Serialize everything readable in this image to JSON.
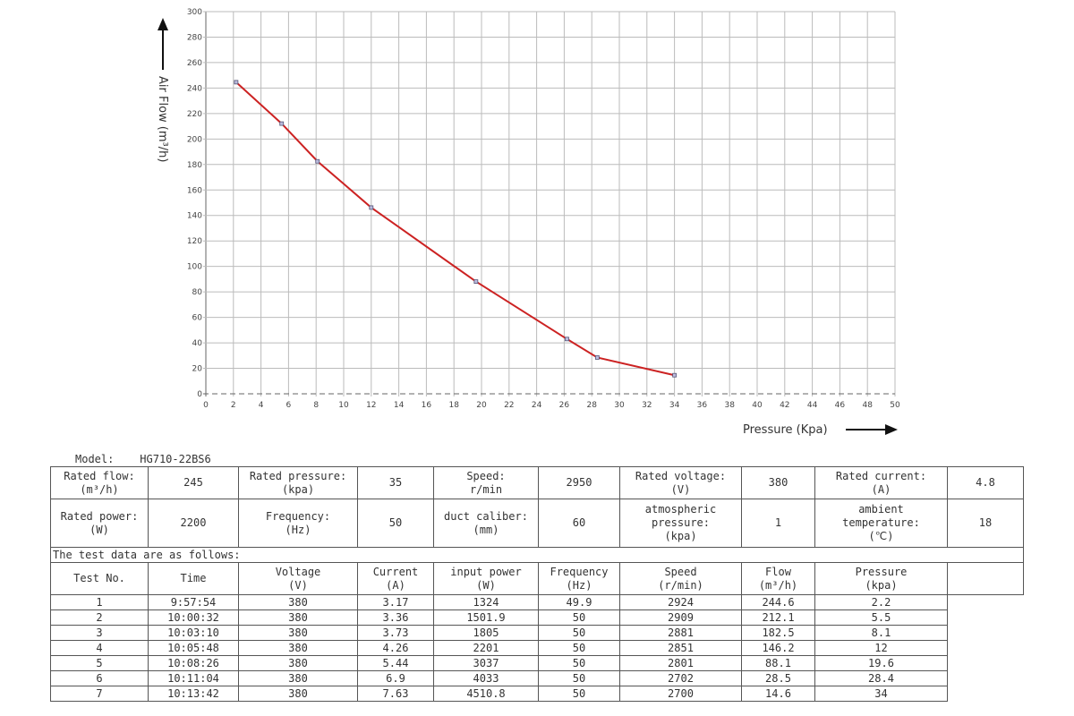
{
  "chart_data": {
    "type": "line",
    "xlabel": "Pressure (Kpa)",
    "ylabel": "Air Flow (m³/h)",
    "xlim": [
      0,
      50
    ],
    "ylim": [
      0,
      300
    ],
    "x_ticks": [
      0,
      2,
      4,
      6,
      8,
      10,
      12,
      14,
      16,
      18,
      20,
      22,
      24,
      26,
      28,
      30,
      32,
      34,
      36,
      38,
      40,
      42,
      44,
      46,
      48,
      50
    ],
    "y_ticks": [
      0,
      20,
      40,
      60,
      80,
      100,
      120,
      140,
      160,
      180,
      200,
      220,
      240,
      260,
      280,
      300
    ],
    "grid": true,
    "series": [
      {
        "x": [
          2.2,
          5.5,
          8.1,
          12,
          19.6,
          26.2,
          28.4,
          34
        ],
        "y": [
          244.6,
          212.1,
          182.5,
          146.2,
          88.1,
          43,
          28.5,
          14.6
        ],
        "color": "#cc2222"
      }
    ]
  },
  "spec": {
    "model_label": "Model:",
    "model_value": "HG710-22BS6",
    "rated_flow_label": [
      "Rated flow:",
      "(m³/h)"
    ],
    "rated_flow": "245",
    "rated_pressure_label": [
      "Rated pressure:",
      "(kpa)"
    ],
    "rated_pressure": "35",
    "speed_label": [
      "Speed:",
      "r/min"
    ],
    "speed": "2950",
    "rated_voltage_label": [
      "Rated voltage:",
      "(V)"
    ],
    "rated_voltage": "380",
    "rated_current_label": [
      "Rated current:",
      "(A)"
    ],
    "rated_current": "4.8",
    "rated_power_label": [
      "Rated power:",
      "(W)"
    ],
    "rated_power": "2200",
    "frequency_label": [
      "Frequency:",
      "(Hz)"
    ],
    "frequency": "50",
    "duct_label": [
      "duct caliber:",
      "(mm)"
    ],
    "duct": "60",
    "atm_label": [
      "atmospheric",
      "pressure:",
      "(kpa)"
    ],
    "atm": "1",
    "ambient_label": [
      "ambient",
      "temperature:",
      "(℃)"
    ],
    "ambient": "18",
    "caption": "The test data are as follows:"
  },
  "table": {
    "headers": [
      [
        "Test No.",
        ""
      ],
      [
        "Time",
        ""
      ],
      [
        "Voltage",
        "(V)"
      ],
      [
        "Current",
        "(A)"
      ],
      [
        "input power",
        "(W)"
      ],
      [
        "Frequency",
        "(Hz)"
      ],
      [
        "Speed",
        "(r/min)"
      ],
      [
        "Flow",
        "(m³/h)"
      ],
      [
        "Pressure",
        "(kpa)"
      ]
    ],
    "rows": [
      [
        "1",
        "9:57:54",
        "380",
        "3.17",
        "1324",
        "49.9",
        "2924",
        "244.6",
        "2.2"
      ],
      [
        "2",
        "10:00:32",
        "380",
        "3.36",
        "1501.9",
        "50",
        "2909",
        "212.1",
        "5.5"
      ],
      [
        "3",
        "10:03:10",
        "380",
        "3.73",
        "1805",
        "50",
        "2881",
        "182.5",
        "8.1"
      ],
      [
        "4",
        "10:05:48",
        "380",
        "4.26",
        "2201",
        "50",
        "2851",
        "146.2",
        "12"
      ],
      [
        "5",
        "10:08:26",
        "380",
        "5.44",
        "3037",
        "50",
        "2801",
        "88.1",
        "19.6"
      ],
      [
        "6",
        "10:11:04",
        "380",
        "6.9",
        "4033",
        "50",
        "2702",
        "28.5",
        "28.4"
      ],
      [
        "7",
        "10:13:42",
        "380",
        "7.63",
        "4510.8",
        "50",
        "2700",
        "14.6",
        "34"
      ]
    ]
  }
}
